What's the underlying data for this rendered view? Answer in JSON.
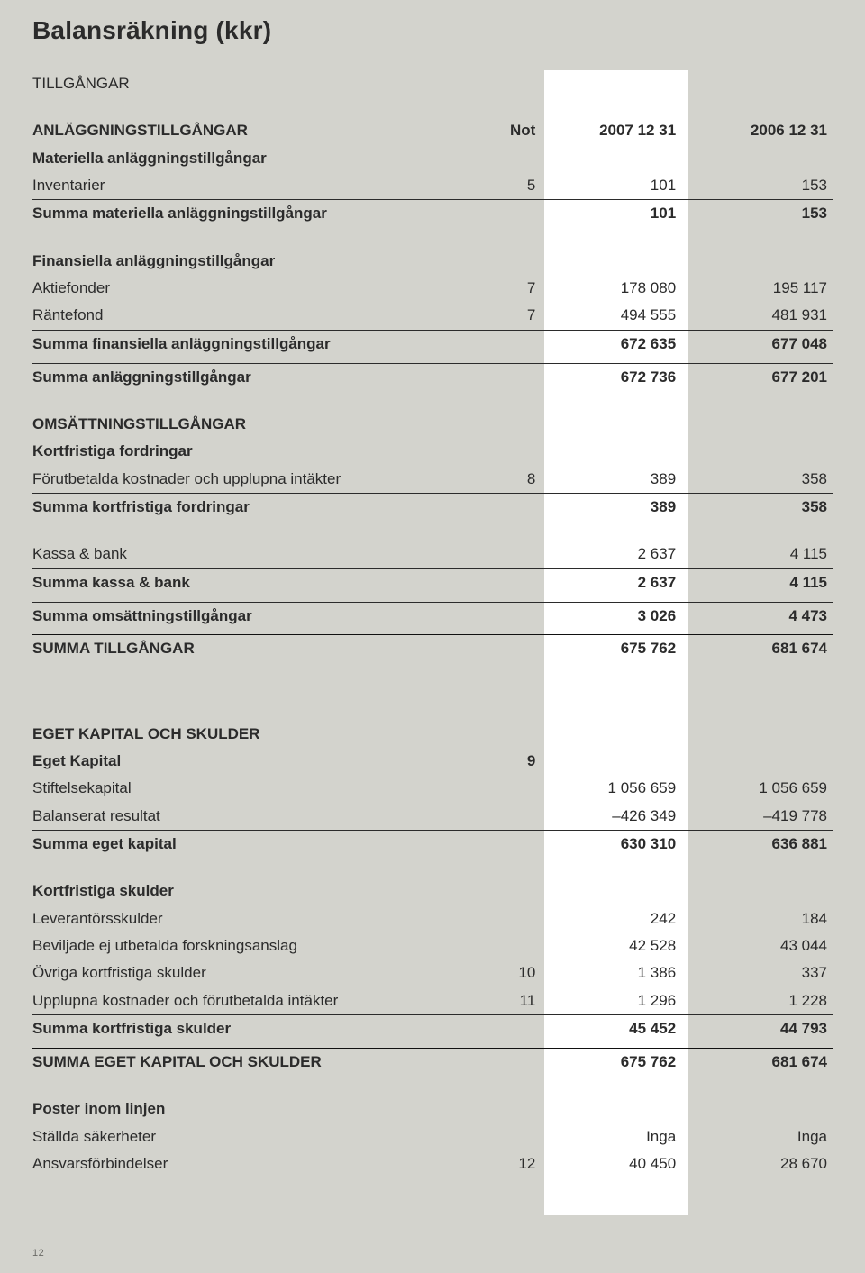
{
  "title": "Balansräkning (kkr)",
  "headers": {
    "note": "Not",
    "col1": "2007 12 31",
    "col2": "2006 12 31"
  },
  "section_tillgangar": "TILLGÅNGAR",
  "anlaggning": {
    "header": "ANLÄGGNINGSTILLGÅNGAR",
    "materiella_header": "Materiella anläggningstillgångar",
    "inventarier": {
      "label": "Inventarier",
      "note": "5",
      "c07": "101",
      "c06": "153"
    },
    "summa_mat": {
      "label": "Summa materiella anläggningstillgångar",
      "c07": "101",
      "c06": "153"
    },
    "finans_header": "Finansiella anläggningstillgångar",
    "aktiefonder": {
      "label": "Aktiefonder",
      "note": "7",
      "c07": "178 080",
      "c06": "195 117"
    },
    "rantefond": {
      "label": "Räntefond",
      "note": "7",
      "c07": "494 555",
      "c06": "481 931"
    },
    "summa_fin": {
      "label": "Summa finansiella anläggningstillgångar",
      "c07": "672 635",
      "c06": "677 048"
    },
    "summa_anl": {
      "label": "Summa anläggningstillgångar",
      "c07": "672 736",
      "c06": "677 201"
    }
  },
  "omsattning": {
    "header": "OMSÄTTNINGSTILLGÅNGAR",
    "kf_header": "Kortfristiga fordringar",
    "forutbet": {
      "label": "Förutbetalda kostnader och upplupna intäkter",
      "note": "8",
      "c07": "389",
      "c06": "358"
    },
    "summa_kf": {
      "label": "Summa kortfristiga fordringar",
      "c07": "389",
      "c06": "358"
    },
    "kassa": {
      "label": "Kassa & bank",
      "c07": "2 637",
      "c06": "4 115"
    },
    "summa_kassa": {
      "label": "Summa kassa & bank",
      "c07": "2 637",
      "c06": "4 115"
    },
    "summa_oms": {
      "label": "Summa omsättningstillgångar",
      "c07": "3 026",
      "c06": "4 473"
    },
    "summa_till": {
      "label": "SUMMA TILLGÅNGAR",
      "c07": "675 762",
      "c06": "681 674"
    }
  },
  "ek": {
    "header": "EGET KAPITAL OCH SKULDER",
    "ek_header": "Eget Kapital",
    "ek_note": "9",
    "stiftelse": {
      "label": "Stiftelsekapital",
      "c07": "1 056 659",
      "c06": "1 056 659"
    },
    "balres": {
      "label": "Balanserat resultat",
      "c07": "–426 349",
      "c06": "–419 778"
    },
    "summa_ek": {
      "label": "Summa eget kapital",
      "c07": "630 310",
      "c06": "636 881"
    },
    "ks_header": "Kortfristiga skulder",
    "lev": {
      "label": "Leverantörsskulder",
      "c07": "242",
      "c06": "184"
    },
    "bev": {
      "label": "Beviljade ej utbetalda forskningsanslag",
      "c07": "42 528",
      "c06": "43 044"
    },
    "ovr": {
      "label": "Övriga kortfristiga skulder",
      "note": "10",
      "c07": "1 386",
      "c06": "337"
    },
    "uppl": {
      "label": "Upplupna kostnader och förutbetalda intäkter",
      "note": "11",
      "c07": "1 296",
      "c06": "1 228"
    },
    "summa_ks": {
      "label": "Summa kortfristiga skulder",
      "c07": "45 452",
      "c06": "44 793"
    },
    "summa_ek_sk": {
      "label": "SUMMA EGET KAPITAL OCH SKULDER",
      "c07": "675 762",
      "c06": "681 674"
    }
  },
  "poster": {
    "header": "Poster inom linjen",
    "sak": {
      "label": "Ställda säkerheter",
      "c07": "Inga",
      "c06": "Inga"
    },
    "ansv": {
      "label": "Ansvarsförbindelser",
      "note": "12",
      "c07": "40 450",
      "c06": "28 670"
    }
  },
  "page_number": "12",
  "colors": {
    "bg": "#d3d3cd",
    "whitecol": "#ffffff",
    "text": "#2b2b2b",
    "rule": "#2b2b2b"
  }
}
